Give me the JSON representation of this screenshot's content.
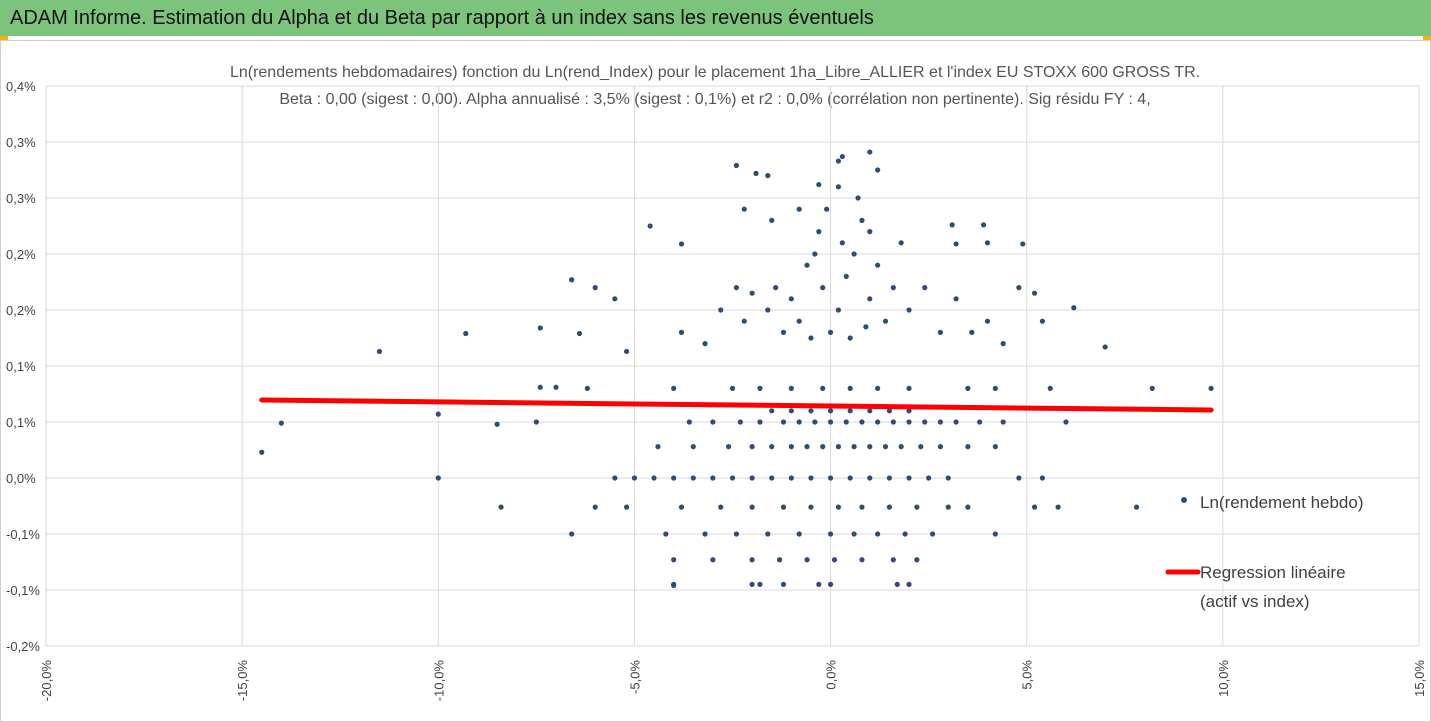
{
  "chart_data": {
    "type": "scatter",
    "header": "ADAM Informe. Estimation du Alpha et du Beta par rapport à un index sans les revenus éventuels",
    "title": "Ln(rendements hebdomadaires) fonction du Ln(rend_Index) pour le placement 1ha_Libre_ALLIER et l'index EU STOXX 600 GROSS TR.",
    "subtitle": "Beta : 0,00 (sigest : 0,00). Alpha annualisé : 3,5% (sigest : 0,1%) et r2 : 0,0% (corrélation non pertinente). Sig résidu FY : 4,",
    "xlim": [
      -20,
      15
    ],
    "xticks": [
      {
        "value": -20,
        "label": "-20,0%"
      },
      {
        "value": -15,
        "label": "-15,0%"
      },
      {
        "value": -10,
        "label": "-10,0%"
      },
      {
        "value": -5,
        "label": "-5,0%"
      },
      {
        "value": 0,
        "label": "0,0%"
      },
      {
        "value": 5,
        "label": "5,0%"
      },
      {
        "value": 10,
        "label": "10,0%"
      },
      {
        "value": 15,
        "label": "15,0%"
      }
    ],
    "ylim": [
      -0.15,
      0.35
    ],
    "yticks": [
      {
        "value": 0.35,
        "label": "0,4%"
      },
      {
        "value": 0.3,
        "label": "0,3%"
      },
      {
        "value": 0.25,
        "label": "0,3%"
      },
      {
        "value": 0.2,
        "label": "0,2%"
      },
      {
        "value": 0.15,
        "label": "0,2%"
      },
      {
        "value": 0.1,
        "label": "0,1%"
      },
      {
        "value": 0.05,
        "label": "0,1%"
      },
      {
        "value": 0,
        "label": "0,0%"
      },
      {
        "value": -0.05,
        "label": "-0,1%"
      },
      {
        "value": -0.1,
        "label": "-0,1%"
      },
      {
        "value": -0.15,
        "label": "-0,2%"
      }
    ],
    "grid": true,
    "series": [
      {
        "name": "Ln(rendement hebdo)",
        "type": "scatter",
        "color": "#2f4b7c",
        "x": [
          -5.5,
          -5.0,
          -4.5,
          -4.0,
          -3.5,
          -3.0,
          -2.5,
          -2.0,
          -1.5,
          -1.0,
          -0.5,
          0.0,
          0.5,
          1.0,
          1.5,
          2.0,
          2.5,
          3.0,
          4.8,
          5.4,
          -4.4,
          -3.5,
          -2.6,
          -2.0,
          -1.5,
          -1.0,
          -0.6,
          -0.2,
          0.2,
          0.6,
          1.0,
          1.4,
          1.8,
          2.3,
          2.8,
          3.5,
          4.2,
          -3.6,
          -3.0,
          -2.3,
          -1.8,
          -1.2,
          -0.8,
          -0.4,
          0.0,
          0.4,
          0.8,
          1.2,
          1.6,
          2.0,
          2.4,
          2.8,
          3.2,
          3.8,
          4.4,
          6.0,
          -1.5,
          -1.0,
          -0.5,
          0.0,
          0.5,
          1.0,
          1.5,
          2.0,
          -4.0,
          -2.5,
          -1.8,
          -1.0,
          -0.2,
          0.5,
          1.2,
          2.0,
          3.5,
          4.2,
          5.6,
          8.2,
          9.7,
          -8.4,
          -6.0,
          -5.2,
          -3.8,
          -2.8,
          -2.0,
          -1.2,
          -0.5,
          0.2,
          0.8,
          1.5,
          2.2,
          3.0,
          3.5,
          5.2,
          5.8,
          7.8,
          -6.6,
          -4.2,
          -3.2,
          -2.4,
          -1.6,
          -0.8,
          0.0,
          0.6,
          1.2,
          1.9,
          2.6,
          4.2,
          -4.0,
          -3.0,
          -2.0,
          -1.3,
          -0.6,
          0.1,
          0.8,
          1.6,
          2.2,
          -4.0,
          -2.0,
          -1.2,
          -0.3,
          0.0,
          1.7,
          2.0,
          -1.8,
          -3.8,
          -3.2,
          -2.8,
          -2.4,
          -2.2,
          -2.0,
          -1.6,
          -1.4,
          -1.2,
          -1.0,
          -0.8,
          -0.6,
          -0.4,
          -0.2,
          -0.1,
          0.2,
          0.4,
          0.6,
          0.8,
          1.0,
          1.2,
          1.4,
          1.6,
          1.8,
          2.0,
          2.4,
          2.8,
          3.2,
          3.6,
          4.0,
          4.4,
          0.0,
          0.5,
          0.9,
          -0.5,
          0.3,
          -0.3,
          0.7,
          1.0,
          -0.8,
          0.2,
          -2.4,
          -1.9,
          -1.6,
          0.3,
          0.2,
          1.0,
          1.2,
          -0.3,
          -2.2,
          -1.5,
          3.1,
          3.9,
          4.9,
          3.2,
          4.8,
          5.2,
          6.2,
          7.0,
          5.4,
          4.0,
          -14.5,
          -14.0,
          -11.5,
          -10.0,
          -9.3,
          -10.0,
          -8.5,
          -7.5,
          -7.4,
          -7.4,
          -7.0,
          -6.6,
          -6.4,
          -6.2,
          -6.0,
          -5.5,
          -5.2,
          -4.6,
          -4.0,
          -3.8
        ],
        "values": [
          0,
          0,
          0,
          0,
          0,
          0,
          0,
          0,
          0,
          0,
          0,
          0,
          0,
          0,
          0,
          0,
          0,
          0,
          0,
          0,
          0.028,
          0.028,
          0.028,
          0.028,
          0.028,
          0.028,
          0.028,
          0.028,
          0.028,
          0.028,
          0.028,
          0.028,
          0.028,
          0.028,
          0.028,
          0.028,
          0.028,
          0.05,
          0.05,
          0.05,
          0.05,
          0.05,
          0.05,
          0.05,
          0.05,
          0.05,
          0.05,
          0.05,
          0.05,
          0.05,
          0.05,
          0.05,
          0.05,
          0.05,
          0.05,
          0.05,
          0.06,
          0.06,
          0.06,
          0.06,
          0.06,
          0.06,
          0.06,
          0.06,
          0.08,
          0.08,
          0.08,
          0.08,
          0.08,
          0.08,
          0.08,
          0.08,
          0.08,
          0.08,
          0.08,
          0.08,
          0.08,
          -0.026,
          -0.026,
          -0.026,
          -0.026,
          -0.026,
          -0.026,
          -0.026,
          -0.026,
          -0.026,
          -0.026,
          -0.026,
          -0.026,
          -0.026,
          -0.026,
          -0.026,
          -0.026,
          -0.026,
          -0.05,
          -0.05,
          -0.05,
          -0.05,
          -0.05,
          -0.05,
          -0.05,
          -0.05,
          -0.05,
          -0.05,
          -0.05,
          -0.05,
          -0.073,
          -0.073,
          -0.073,
          -0.073,
          -0.073,
          -0.073,
          -0.073,
          -0.073,
          -0.073,
          -0.095,
          -0.095,
          -0.095,
          -0.095,
          -0.095,
          -0.095,
          -0.095,
          -0.095,
          0.13,
          0.12,
          0.15,
          0.17,
          0.14,
          0.165,
          0.15,
          0.17,
          0.13,
          0.16,
          0.14,
          0.19,
          0.2,
          0.17,
          0.24,
          0.15,
          0.18,
          0.2,
          0.23,
          0.16,
          0.19,
          0.14,
          0.17,
          0.21,
          0.15,
          0.17,
          0.13,
          0.16,
          0.13,
          0.14,
          0.12,
          0.13,
          0.125,
          0.135,
          0.125,
          0.21,
          0.22,
          0.25,
          0.22,
          0.24,
          0.26,
          0.279,
          0.272,
          0.27,
          0.287,
          0.283,
          0.291,
          0.275,
          0.262,
          0.24,
          0.23,
          0.226,
          0.226,
          0.209,
          0.209,
          0.17,
          0.165,
          0.152,
          0.117,
          0.14,
          0.21,
          0.023,
          0.049,
          0.113,
          0,
          0.129,
          0.057,
          0.048,
          0.05,
          0.134,
          0.081,
          0.081,
          0.177,
          0.129,
          0.08,
          0.17,
          0.16,
          0.113,
          0.225,
          -0.096,
          0.209
        ]
      },
      {
        "name": "Regression linéaire (actif vs index)",
        "type": "line",
        "color": "#ff0000",
        "x": [
          -14.5,
          9.7
        ],
        "values": [
          0.0696,
          0.0607
        ]
      }
    ]
  }
}
